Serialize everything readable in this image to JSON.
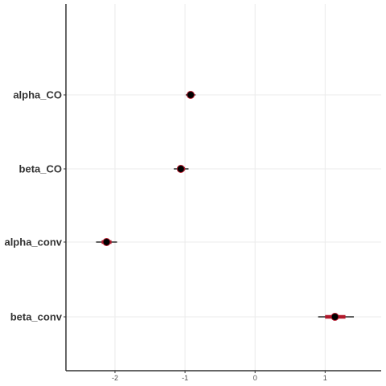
{
  "chart_data": {
    "type": "scatter",
    "subtype": "interval-plot",
    "title": "",
    "xlabel": "",
    "ylabel": "",
    "xlim": [
      -2.7,
      1.8
    ],
    "x_ticks": [
      -2,
      -1,
      0,
      1
    ],
    "x_tick_labels": [
      "-2",
      "-1",
      "0",
      "1"
    ],
    "grid": true,
    "categories": [
      "alpha_CO",
      "beta_CO",
      "alpha_conv",
      "beta_conv"
    ],
    "estimates": [
      {
        "name": "alpha_CO",
        "point": -0.92,
        "inner": [
          -0.96,
          -0.88
        ],
        "outer": [
          -0.99,
          -0.85
        ]
      },
      {
        "name": "beta_CO",
        "point": -1.06,
        "inner": [
          -1.11,
          -1.0
        ],
        "outer": [
          -1.16,
          -0.95
        ]
      },
      {
        "name": "alpha_conv",
        "point": -2.12,
        "inner": [
          -2.19,
          -2.05
        ],
        "outer": [
          -2.27,
          -1.97
        ]
      },
      {
        "name": "beta_conv",
        "point": 1.14,
        "inner": [
          1.0,
          1.29
        ],
        "outer": [
          0.9,
          1.41
        ]
      }
    ],
    "colors": {
      "interval_inner": "#b2182b",
      "interval_outer": "#000000",
      "point_fill": "#000000",
      "grid": "#ebebeb",
      "axis": "#333333"
    }
  }
}
